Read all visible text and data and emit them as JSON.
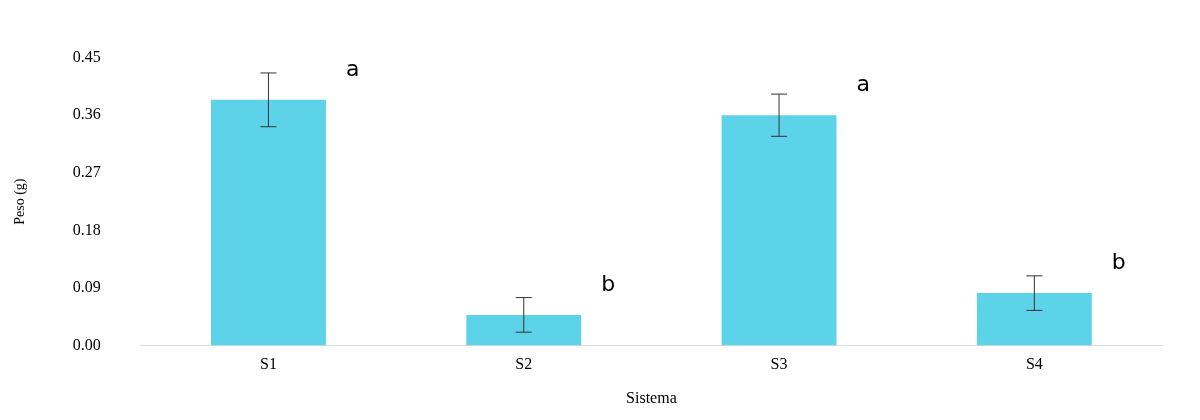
{
  "chart_data": {
    "type": "bar",
    "xlabel": "Sistema",
    "ylabel": "Peso (g)",
    "categories": [
      "S1",
      "S2",
      "S3",
      "S4"
    ],
    "values": [
      0.384,
      0.048,
      0.36,
      0.082
    ],
    "errors": [
      0.042,
      0.027,
      0.033,
      0.027
    ],
    "color": "#5dd3ea",
    "ylim": [
      0,
      0.45
    ],
    "yticks": [
      {
        "value": 0,
        "label": "0.00"
      },
      {
        "value": 0.09,
        "label": "0.09"
      },
      {
        "value": 0.18,
        "label": "0.18"
      },
      {
        "value": 0.27,
        "label": "0.27"
      },
      {
        "value": 0.36,
        "label": "0.36"
      },
      {
        "value": 0.45,
        "label": "0.45"
      }
    ],
    "grid": false,
    "legend": false,
    "annotations": [
      "a",
      "b",
      "a",
      "b"
    ]
  }
}
